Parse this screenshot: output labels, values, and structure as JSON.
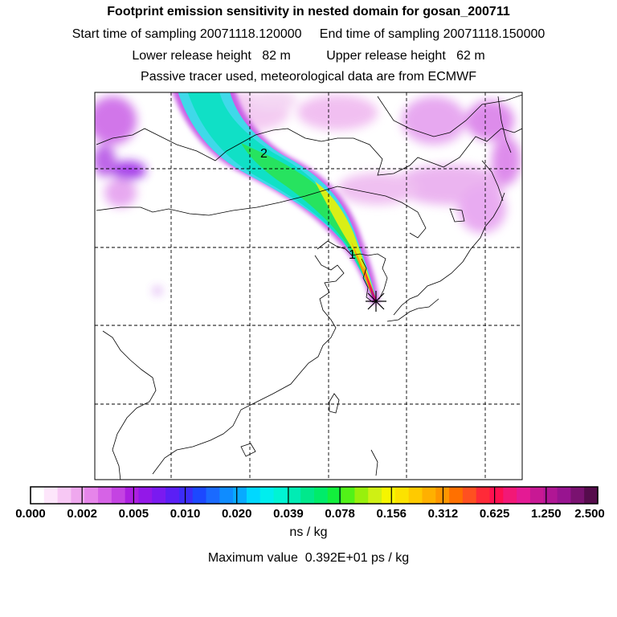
{
  "header": {
    "title": "Footprint emission sensitivity in nested domain for gosan_200711",
    "line2": "Start time of sampling 20071118.120000     End time of sampling 20071118.150000",
    "line3": "Lower release height   82 m          Upper release height   62 m",
    "line4": "Passive tracer used, meteorological data are from ECMWF"
  },
  "chart_data": {
    "type": "heatmap",
    "title": "Footprint emission sensitivity in nested domain for gosan_200711",
    "start_time": "20071118.120000",
    "end_time": "20071118.150000",
    "lower_release_height": "82 m",
    "upper_release_height": "62 m",
    "units": "ns / kg",
    "max_value": "Maximum value  0.392E+01 ps / kg",
    "colorbar_ticks": [
      "0.000",
      "0.002",
      "0.005",
      "0.010",
      "0.020",
      "0.039",
      "0.078",
      "0.156",
      "0.312",
      "0.625",
      "1.250",
      "2.500"
    ],
    "colorbar_colors": [
      "#ffffff",
      "#fde6fb",
      "#f7c8f4",
      "#efa8ee",
      "#e685ea",
      "#d663e6",
      "#c443e2",
      "#ac1fe0",
      "#9318e8",
      "#7a1af0",
      "#5b1ff5",
      "#3c2cf8",
      "#1c48ff",
      "#1a6aff",
      "#0f8cff",
      "#08aaff",
      "#00d8ff",
      "#00eeee",
      "#00f4d4",
      "#00ecb4",
      "#00e88c",
      "#00ec6a",
      "#12f03c",
      "#52f218",
      "#98f00c",
      "#cff014",
      "#f6f500",
      "#fce200",
      "#ffca00",
      "#ffb000",
      "#ff9600",
      "#ff7000",
      "#ff5020",
      "#ff2a38",
      "#ff1050",
      "#f21876",
      "#e41a94",
      "#c81894",
      "#b01694",
      "#981490",
      "#7a1270",
      "#560c4c"
    ],
    "plume_labels": [
      "2",
      "1"
    ],
    "receptor": "Gosan"
  },
  "map": {
    "grid": "on",
    "domain": "East Asia nested domain"
  }
}
